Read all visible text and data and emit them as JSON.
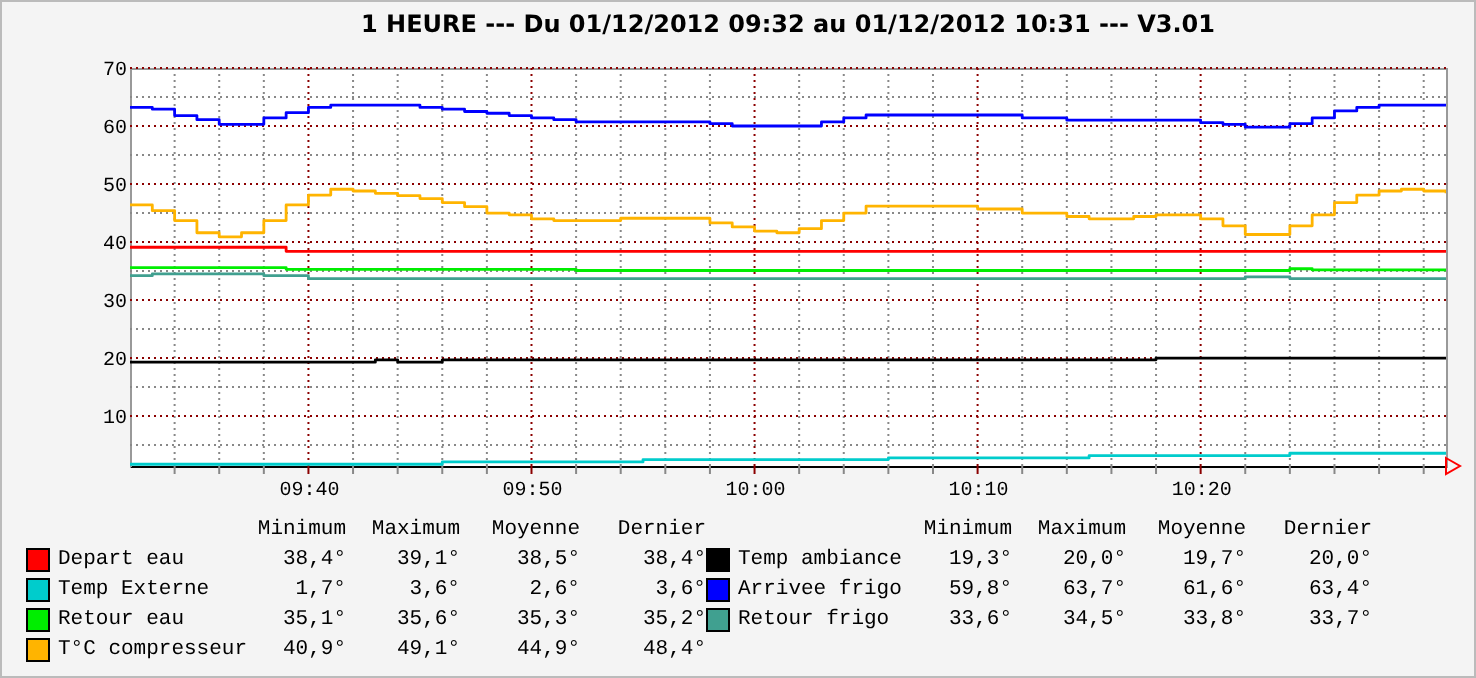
{
  "chart_data": {
    "type": "step",
    "title": "1 HEURE --- Du 01/12/2012 09:32 au 01/12/2012 10:31 --- V3.01",
    "x": [
      "2012-12-01T09:32",
      "2012-12-01T09:33",
      "2012-12-01T09:34",
      "2012-12-01T09:35",
      "2012-12-01T09:36",
      "2012-12-01T09:37",
      "2012-12-01T09:38",
      "2012-12-01T09:39",
      "2012-12-01T09:40",
      "2012-12-01T09:41",
      "2012-12-01T09:42",
      "2012-12-01T09:43",
      "2012-12-01T09:44",
      "2012-12-01T09:45",
      "2012-12-01T09:46",
      "2012-12-01T09:47",
      "2012-12-01T09:48",
      "2012-12-01T09:49",
      "2012-12-01T09:50",
      "2012-12-01T09:51",
      "2012-12-01T09:52",
      "2012-12-01T09:53",
      "2012-12-01T09:54",
      "2012-12-01T09:55",
      "2012-12-01T09:56",
      "2012-12-01T09:57",
      "2012-12-01T09:58",
      "2012-12-01T09:59",
      "2012-12-01T10:00",
      "2012-12-01T10:01",
      "2012-12-01T10:02",
      "2012-12-01T10:03",
      "2012-12-01T10:04",
      "2012-12-01T10:05",
      "2012-12-01T10:06",
      "2012-12-01T10:07",
      "2012-12-01T10:08",
      "2012-12-01T10:09",
      "2012-12-01T10:10",
      "2012-12-01T10:11",
      "2012-12-01T10:12",
      "2012-12-01T10:13",
      "2012-12-01T10:14",
      "2012-12-01T10:15",
      "2012-12-01T10:16",
      "2012-12-01T10:17",
      "2012-12-01T10:18",
      "2012-12-01T10:19",
      "2012-12-01T10:20",
      "2012-12-01T10:21",
      "2012-12-01T10:22",
      "2012-12-01T10:23",
      "2012-12-01T10:24",
      "2012-12-01T10:25",
      "2012-12-01T10:26",
      "2012-12-01T10:27",
      "2012-12-01T10:28",
      "2012-12-01T10:29",
      "2012-12-01T10:30",
      "2012-12-01T10:31"
    ],
    "series": [
      {
        "name": "Depart eau",
        "color": "#ff0000",
        "values": [
          39.1,
          39.1,
          39.1,
          39.1,
          39.1,
          39.1,
          39.1,
          38.4,
          38.4,
          38.4,
          38.4,
          38.4,
          38.4,
          38.4,
          38.4,
          38.4,
          38.4,
          38.4,
          38.4,
          38.4,
          38.4,
          38.4,
          38.4,
          38.4,
          38.4,
          38.4,
          38.4,
          38.4,
          38.4,
          38.4,
          38.4,
          38.4,
          38.4,
          38.4,
          38.4,
          38.4,
          38.4,
          38.4,
          38.4,
          38.4,
          38.4,
          38.4,
          38.4,
          38.4,
          38.4,
          38.4,
          38.4,
          38.4,
          38.4,
          38.4,
          38.4,
          38.4,
          38.4,
          38.4,
          38.4,
          38.4,
          38.4,
          38.4,
          38.4,
          38.4
        ]
      },
      {
        "name": "Temp Externe",
        "color": "#00cccc",
        "values": [
          1.7,
          1.7,
          1.7,
          1.7,
          1.7,
          1.7,
          1.7,
          1.7,
          1.7,
          1.7,
          1.7,
          1.7,
          1.7,
          1.7,
          2.1,
          2.1,
          2.1,
          2.1,
          2.1,
          2.1,
          2.1,
          2.1,
          2.1,
          2.5,
          2.5,
          2.5,
          2.5,
          2.5,
          2.5,
          2.5,
          2.5,
          2.5,
          2.5,
          2.5,
          2.8,
          2.8,
          2.8,
          2.8,
          2.8,
          2.8,
          2.8,
          2.8,
          2.8,
          3.2,
          3.2,
          3.2,
          3.2,
          3.2,
          3.2,
          3.2,
          3.2,
          3.2,
          3.6,
          3.6,
          3.6,
          3.6,
          3.6,
          3.6,
          3.6,
          3.6
        ]
      },
      {
        "name": "Retour eau",
        "color": "#00ee00",
        "values": [
          35.6,
          35.6,
          35.6,
          35.6,
          35.6,
          35.6,
          35.6,
          35.3,
          35.3,
          35.3,
          35.3,
          35.3,
          35.3,
          35.3,
          35.3,
          35.3,
          35.3,
          35.3,
          35.3,
          35.3,
          35.1,
          35.1,
          35.1,
          35.1,
          35.1,
          35.1,
          35.1,
          35.1,
          35.1,
          35.1,
          35.1,
          35.1,
          35.1,
          35.1,
          35.1,
          35.1,
          35.1,
          35.1,
          35.1,
          35.1,
          35.1,
          35.1,
          35.1,
          35.1,
          35.1,
          35.1,
          35.1,
          35.1,
          35.1,
          35.1,
          35.1,
          35.1,
          35.4,
          35.2,
          35.2,
          35.2,
          35.2,
          35.2,
          35.2,
          35.2
        ]
      },
      {
        "name": "T°C compresseur",
        "color": "#ffb400",
        "values": [
          46.4,
          45.4,
          43.7,
          41.6,
          40.9,
          41.6,
          43.7,
          46.4,
          48.1,
          49.1,
          48.8,
          48.4,
          48.0,
          47.5,
          46.8,
          46.1,
          45.0,
          44.7,
          44.0,
          43.7,
          43.7,
          43.7,
          44.1,
          44.1,
          44.1,
          44.1,
          43.3,
          42.6,
          41.9,
          41.6,
          42.3,
          43.7,
          45.0,
          46.2,
          46.2,
          46.2,
          46.2,
          46.2,
          45.7,
          45.7,
          45.0,
          45.0,
          44.4,
          44.0,
          44.0,
          44.4,
          44.7,
          44.7,
          44.0,
          42.8,
          41.3,
          41.3,
          42.8,
          44.7,
          46.8,
          48.1,
          48.8,
          49.1,
          48.8,
          48.4
        ]
      },
      {
        "name": "Temp ambiance",
        "color": "#000000",
        "values": [
          19.3,
          19.3,
          19.3,
          19.3,
          19.3,
          19.3,
          19.3,
          19.3,
          19.3,
          19.3,
          19.3,
          19.7,
          19.3,
          19.3,
          19.7,
          19.7,
          19.7,
          19.7,
          19.7,
          19.7,
          19.7,
          19.7,
          19.7,
          19.7,
          19.7,
          19.7,
          19.7,
          19.7,
          19.7,
          19.7,
          19.7,
          19.7,
          19.7,
          19.7,
          19.7,
          19.7,
          19.7,
          19.7,
          19.7,
          19.7,
          19.7,
          19.7,
          19.7,
          19.7,
          19.7,
          19.7,
          20.0,
          20.0,
          20.0,
          20.0,
          20.0,
          20.0,
          20.0,
          20.0,
          20.0,
          20.0,
          20.0,
          20.0,
          20.0,
          20.0
        ]
      },
      {
        "name": "Arrivee frigo",
        "color": "#0000ff",
        "values": [
          63.2,
          62.9,
          61.8,
          61.1,
          60.3,
          60.3,
          61.4,
          62.3,
          63.2,
          63.6,
          63.6,
          63.6,
          63.6,
          63.2,
          62.9,
          62.5,
          62.2,
          61.8,
          61.4,
          61.1,
          60.7,
          60.7,
          60.7,
          60.7,
          60.7,
          60.7,
          60.4,
          60.0,
          60.0,
          60.0,
          60.0,
          60.7,
          61.4,
          61.9,
          61.9,
          61.9,
          61.9,
          61.9,
          61.9,
          61.9,
          61.4,
          61.4,
          61.0,
          61.0,
          61.0,
          61.0,
          61.0,
          61.0,
          60.6,
          60.3,
          59.8,
          59.8,
          60.4,
          61.4,
          62.6,
          63.2,
          63.6,
          63.6,
          63.6,
          63.4
        ]
      },
      {
        "name": "Retour frigo",
        "color": "#40a090",
        "values": [
          34.2,
          34.5,
          34.5,
          34.5,
          34.5,
          34.5,
          34.2,
          34.2,
          33.7,
          33.7,
          33.7,
          33.7,
          33.7,
          33.7,
          33.7,
          33.7,
          33.7,
          33.7,
          33.7,
          33.7,
          33.7,
          33.7,
          33.7,
          33.7,
          33.7,
          33.7,
          33.7,
          33.7,
          33.7,
          33.7,
          33.7,
          33.7,
          33.7,
          33.7,
          33.7,
          33.7,
          33.7,
          33.7,
          33.7,
          33.7,
          33.7,
          33.7,
          33.7,
          33.7,
          33.7,
          33.7,
          33.7,
          33.7,
          33.7,
          33.7,
          34.0,
          34.0,
          33.7,
          33.7,
          33.7,
          33.7,
          33.7,
          33.7,
          33.7,
          33.7
        ]
      }
    ],
    "xlim": [
      "2012-12-01T09:32",
      "2012-12-01T10:31"
    ],
    "xticks": [
      {
        "value": "2012-12-01T09:34",
        "label": null
      },
      {
        "value": "2012-12-01T09:36",
        "label": null
      },
      {
        "value": "2012-12-01T09:38",
        "label": null
      },
      {
        "value": "2012-12-01T09:40",
        "label": "09:40"
      },
      {
        "value": "2012-12-01T09:42",
        "label": null
      },
      {
        "value": "2012-12-01T09:44",
        "label": null
      },
      {
        "value": "2012-12-01T09:46",
        "label": null
      },
      {
        "value": "2012-12-01T09:48",
        "label": null
      },
      {
        "value": "2012-12-01T09:50",
        "label": "09:50"
      },
      {
        "value": "2012-12-01T09:52",
        "label": null
      },
      {
        "value": "2012-12-01T09:54",
        "label": null
      },
      {
        "value": "2012-12-01T09:56",
        "label": null
      },
      {
        "value": "2012-12-01T09:58",
        "label": null
      },
      {
        "value": "2012-12-01T10:00",
        "label": "10:00"
      },
      {
        "value": "2012-12-01T10:02",
        "label": null
      },
      {
        "value": "2012-12-01T10:04",
        "label": null
      },
      {
        "value": "2012-12-01T10:06",
        "label": null
      },
      {
        "value": "2012-12-01T10:08",
        "label": null
      },
      {
        "value": "2012-12-01T10:10",
        "label": "10:10"
      },
      {
        "value": "2012-12-01T10:12",
        "label": null
      },
      {
        "value": "2012-12-01T10:14",
        "label": null
      },
      {
        "value": "2012-12-01T10:16",
        "label": null
      },
      {
        "value": "2012-12-01T10:18",
        "label": null
      },
      {
        "value": "2012-12-01T10:20",
        "label": "10:20"
      },
      {
        "value": "2012-12-01T10:22",
        "label": null
      },
      {
        "value": "2012-12-01T10:24",
        "label": null
      },
      {
        "value": "2012-12-01T10:26",
        "label": null
      },
      {
        "value": "2012-12-01T10:28",
        "label": null
      },
      {
        "value": "2012-12-01T10:30",
        "label": null
      }
    ],
    "ylim": [
      1.4,
      70
    ],
    "yticks": [
      {
        "value": 5,
        "label": null
      },
      10,
      {
        "value": 15,
        "label": null
      },
      20,
      {
        "value": 25,
        "label": null
      },
      30,
      {
        "value": 35,
        "label": null
      },
      40,
      {
        "value": 45,
        "label": null
      },
      50,
      {
        "value": 55,
        "label": null
      },
      60,
      {
        "value": 65,
        "label": null
      },
      70
    ],
    "grid": true,
    "legend": "bottom",
    "annotations": [
      "Minimum",
      "Maximum",
      "Moyenne",
      "Dernier",
      "38,4°",
      "39,1°",
      "38,5°",
      "38,4°",
      "1,7°",
      "3,6°",
      "2,6°",
      "3,6°",
      "35,1°",
      "35,6°",
      "35,3°",
      "35,2°",
      "40,9°",
      "49,1°",
      "44,9°",
      "48,4°",
      "19,3°",
      "20,0°",
      "19,7°",
      "20,0°",
      "59,8°",
      "63,7°",
      "61,6°",
      "63,4°",
      "33,6°",
      "34,5°",
      "33,8°",
      "33,7°"
    ]
  }
}
